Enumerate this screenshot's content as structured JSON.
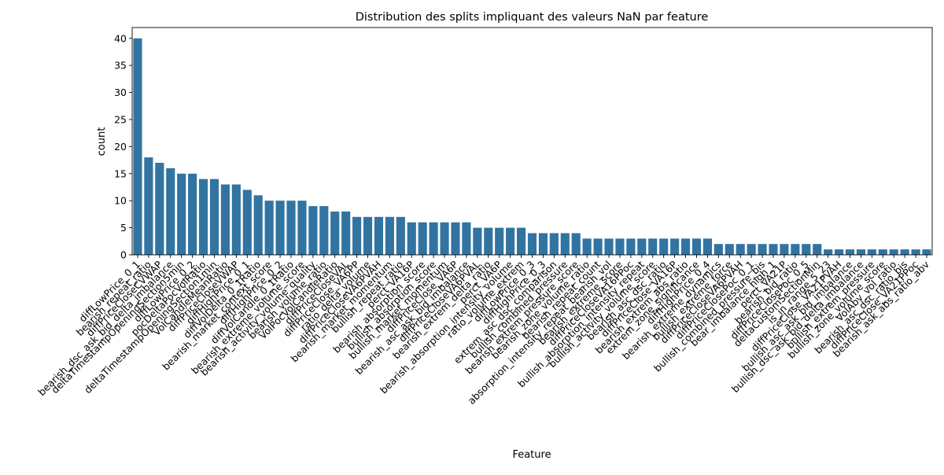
{
  "chart_data": {
    "type": "bar",
    "title": "Distribution des splits impliquant des valeurs NaN par feature",
    "xlabel": "Feature",
    "ylabel": "count",
    "ylim": [
      0,
      42
    ],
    "yticks": [
      0,
      5,
      10,
      15,
      20,
      25,
      30,
      35,
      40
    ],
    "grid": false,
    "bar_color": "#3274a1",
    "categories": [
      "diffLowPrice_0_1",
      "bearish_repeat_ratio",
      "diffPriceCloseCVWAP",
      "bearish_dsc_ask_bid_delta_imbalance",
      "deltaTimestampOpeningSection5min",
      "diffLowPrice_0_2",
      "pocDeltaPocVolRatio",
      "deltaTimestampOpeningSection1min",
      "VolCandleMeanRatio",
      "diffPriceCloseVWAP",
      "diffHighPrice_0_1",
      "diffVolDelta_0_1Ratio",
      "bearish_market_context_score",
      "diffHighPrice_0_2",
      "diffVolCandle_0_1Ratio",
      "bearish_extreme_volume_score",
      "bearish_activity_volume_quality",
      "bearish_volume_ratio",
      "VolPocVolCandleRatio",
      "diffPriceCloseVAL",
      "diffPriceClose_VA6PP",
      "ratio_delta_volume",
      "diffPriceCloseVA6PVAH",
      "bearish_market_momentum",
      "bullish_repeat_ratio",
      "perct_VA16P",
      "bearish_absorption_score",
      "bullish_absorption_score",
      "bullish_market_momentum",
      "diffPriceClose_VA6P",
      "bearish_asc_ask_bid_imbalance",
      "diffPriceCloseVA6PVAL",
      "bearish_extrem_delta_ratio",
      "perct_VA6P",
      "bearish_absorption_intensity_volume",
      "ratio_volume_extrem",
      "diffLowPrice_0_3",
      "diffHighPrice_0_3",
      "extrem_asc_dsc_comparison",
      "bullish_combined_pressure",
      "bearish_extrem_pressure_score",
      "bearish_zone_volume_ratio",
      "bearish_repeat_count",
      "absorption_intensity_repeat_bearish_vol",
      "bearish_extreme_score",
      "diffPriceCloseVA16PPoc",
      "bullish_absorption_intensity_repeat",
      "bullish_activity_volume_score",
      "bearish_asc_dsc_ratio",
      "diffPriceClose_VA16P",
      "bearish_extrem_abs_ratio",
      "extrem_zone_significance",
      "diffHighPrice_0_4",
      "bearish_extreme_dynamics",
      "bullish_extreme_force",
      "diffPriceCloseVA6PVAH",
      "diffPriceClosePoc_0_1",
      "bullish_combined_pressure_bis",
      "bear_imbalance_high_1",
      "perct_VA21P",
      "bearish_bid_ratio",
      "diffPriceClosePoc_0_5",
      "deltaCustomSectionMin",
      "is_in_range_5_23",
      "diffPriceClose_VA21PVAH",
      "bullish_asc_ask_bid_imbalance",
      "bullish_dsc_ask_bid_delta_imbalance",
      "bullish_extrem_pressure",
      "bullish_zone_volume_score",
      "VolAbv_vol_ratio",
      "bearish_asc_dsc_ratio_bis",
      "diffPriceClose_VA21PPoc",
      "bearish_ask_abs_ratio_abv"
    ],
    "values": [
      40,
      18,
      17,
      16,
      15,
      15,
      14,
      14,
      13,
      13,
      12,
      11,
      10,
      10,
      10,
      10,
      9,
      9,
      8,
      8,
      7,
      7,
      7,
      7,
      7,
      6,
      6,
      6,
      6,
      6,
      6,
      5,
      5,
      5,
      5,
      5,
      4,
      4,
      4,
      4,
      4,
      3,
      3,
      3,
      3,
      3,
      3,
      3,
      3,
      3,
      3,
      3,
      3,
      2,
      2,
      2,
      2,
      2,
      2,
      2,
      2,
      2,
      2,
      1,
      1,
      1,
      1,
      1,
      1,
      1,
      1,
      1,
      1
    ]
  }
}
